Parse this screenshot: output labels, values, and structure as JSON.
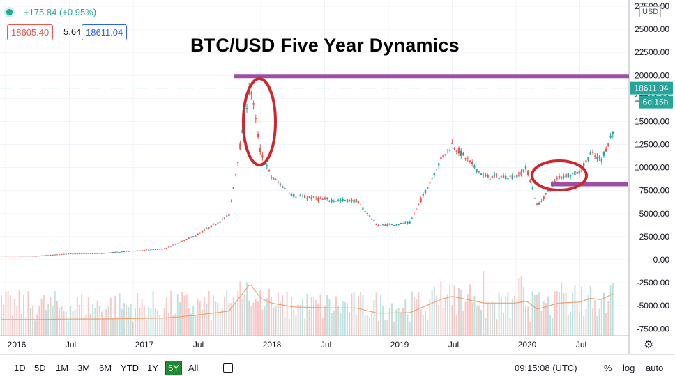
{
  "header": {
    "change": "+175.84 (+0.95%)",
    "sell_price": "18605.40",
    "spread": "5.64",
    "buy_price": "18611.04"
  },
  "title": "BTC/USD Five Year Dynamics",
  "price_axis": {
    "currency": "USD",
    "ticks": [
      "27500.00",
      "25000.00",
      "22500.00",
      "20000.00",
      "17500.00",
      "15000.00",
      "12500.00",
      "10000.00",
      "7500.00",
      "5000.00",
      "2500.00",
      "0.00",
      "-2500.00",
      "-5000.00",
      "-7500.00"
    ],
    "last_price_label": "18611.04",
    "countdown_label": "6d 15h"
  },
  "time_axis": {
    "labels": [
      "2016",
      "Jul",
      "2017",
      "Jul",
      "2018",
      "Jul",
      "2019",
      "Jul",
      "2020",
      "Jul"
    ]
  },
  "toolbar": {
    "ranges": [
      "1D",
      "5D",
      "1M",
      "3M",
      "6M",
      "YTD",
      "1Y",
      "5Y",
      "All"
    ],
    "active_range": "5Y",
    "clock": "09:15:08 (UTC)",
    "percent": "%",
    "log": "log",
    "auto": "auto"
  },
  "colors": {
    "up": "#26a69a",
    "down": "#ef5350",
    "annotation_line": "#9c4fa5",
    "annotation_circle": "#d0262b",
    "ma_line": "#f0a070"
  },
  "chart_data": {
    "type": "line",
    "title": "BTC/USD Five Year Dynamics",
    "x_labels": [
      "2016",
      "Jul",
      "2017",
      "Jul",
      "2018",
      "Jul",
      "2019",
      "Jul",
      "2020",
      "Jul"
    ],
    "x": [
      "2016-01",
      "2016-04",
      "2016-07",
      "2016-10",
      "2017-01",
      "2017-04",
      "2017-07",
      "2017-10",
      "2017-12",
      "2018-01",
      "2018-02",
      "2018-04",
      "2018-07",
      "2018-10",
      "2018-12",
      "2019-03",
      "2019-06",
      "2019-07",
      "2019-10",
      "2020-01",
      "2020-02",
      "2020-03",
      "2020-05",
      "2020-07",
      "2020-08",
      "2020-09",
      "2020-10",
      "2020-11"
    ],
    "series": [
      {
        "values": [
          430,
          420,
          660,
          700,
          970,
          1200,
          2700,
          4800,
          19000,
          11500,
          9000,
          7000,
          6500,
          6400,
          3700,
          4000,
          11000,
          12500,
          9000,
          9000,
          10000,
          5800,
          9000,
          9500,
          11500,
          10800,
          13500,
          18611
        ]
      }
    ],
    "ylim": [
      -8500,
      28000
    ],
    "y_ticks": [
      27500,
      25000,
      22500,
      20000,
      17500,
      15000,
      12500,
      10000,
      7500,
      5000,
      2500,
      0,
      -2500,
      -5000,
      -7500
    ],
    "annotations": {
      "resistance_level": 20000,
      "support_level": 8200,
      "last_price": 18611.04
    },
    "grid": true
  }
}
